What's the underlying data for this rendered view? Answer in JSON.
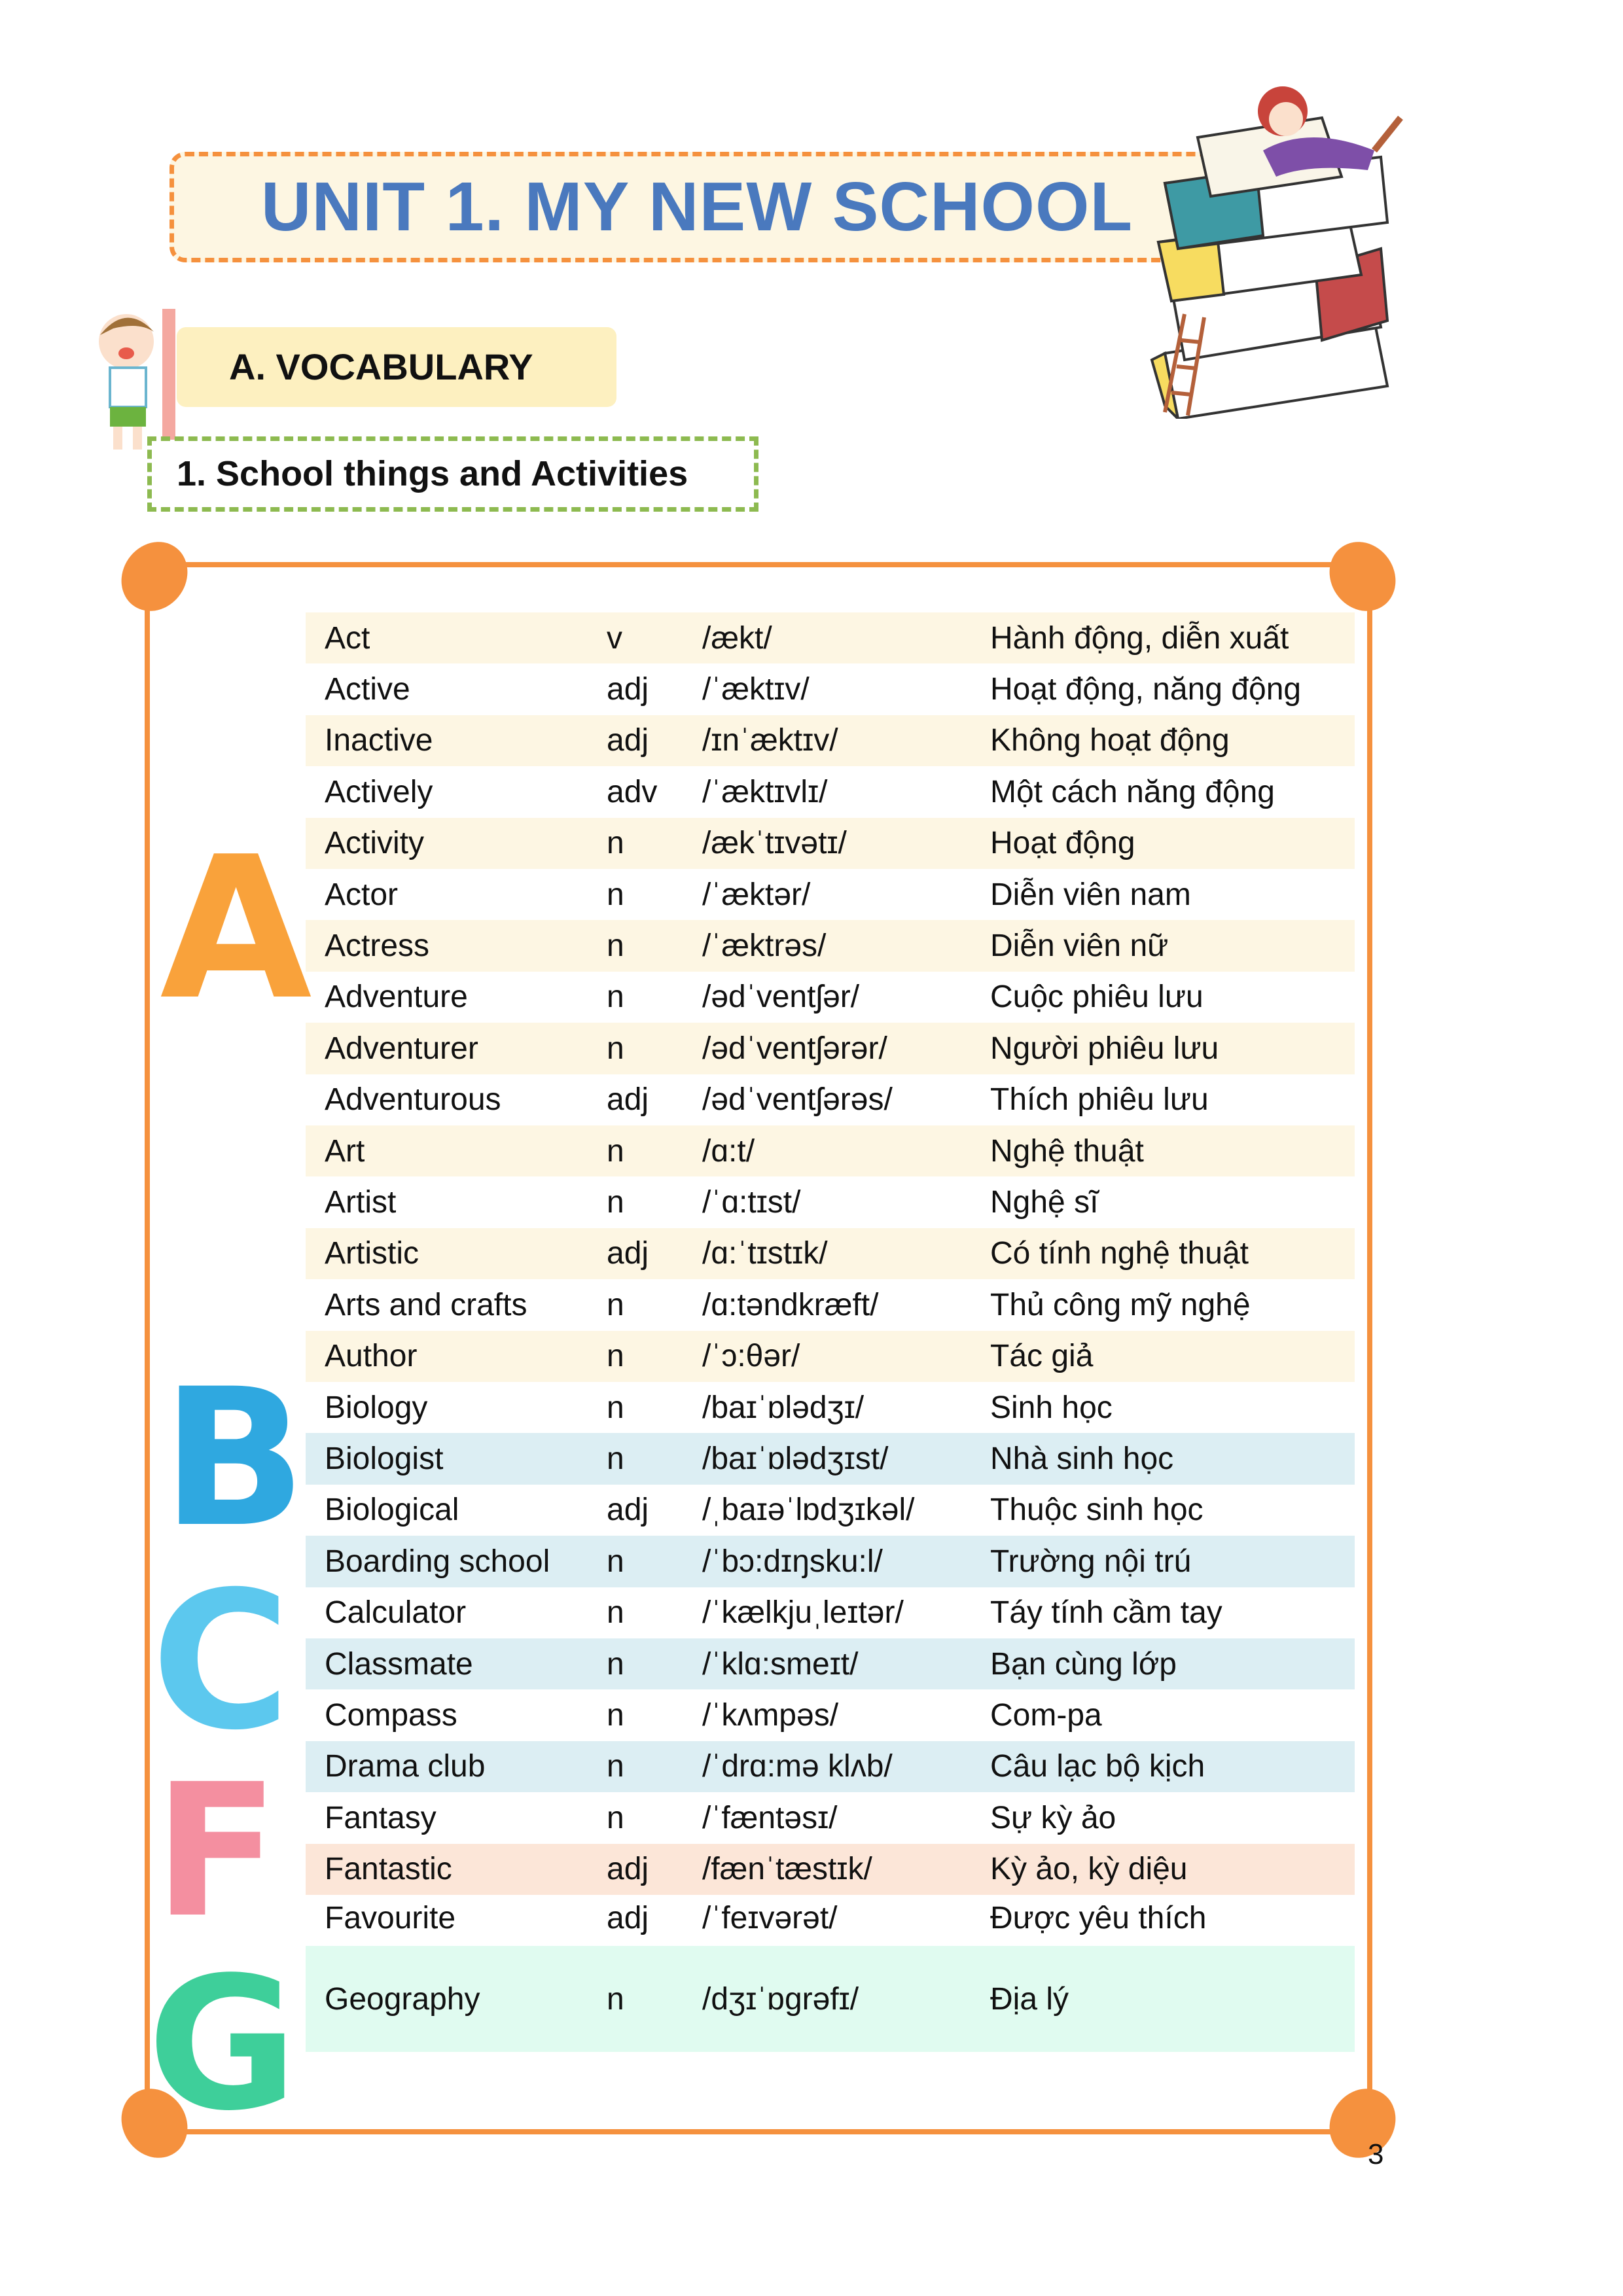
{
  "header": {
    "title": "UNIT 1. MY NEW SCHOOL",
    "section_label": "A. VOCABULARY",
    "subsection_label": "1. School things and Activities"
  },
  "colors": {
    "title": "#4A79BE",
    "frame": "#F5913E",
    "row_cream": "#FDF6E3",
    "row_blue": "#DCEEF3",
    "row_peach": "#FCE6D8",
    "row_mint": "#E0FBF0"
  },
  "decorations": {
    "letters": [
      "A",
      "B",
      "C",
      "F",
      "G"
    ],
    "illustrations": [
      "girl-reading-on-books",
      "boy-with-pencil"
    ]
  },
  "vocabulary": [
    {
      "word": "Act",
      "pos": "v",
      "ipa": "/ækt/",
      "meaning": "Hành động, diễn xuất",
      "bg": "cream"
    },
    {
      "word": "Active",
      "pos": "adj",
      "ipa": "/ˈæktɪv/",
      "meaning": "Hoạt động, năng động",
      "bg": "white"
    },
    {
      "word": "Inactive",
      "pos": "adj",
      "ipa": "/ɪnˈæktɪv/",
      "meaning": "Không hoạt động",
      "bg": "cream"
    },
    {
      "word": "Actively",
      "pos": "adv",
      "ipa": "/ˈæktɪvlɪ/",
      "meaning": "Một cách năng động",
      "bg": "white"
    },
    {
      "word": "Activity",
      "pos": "n",
      "ipa": "/ækˈtɪvətɪ/",
      "meaning": "Hoạt động",
      "bg": "cream"
    },
    {
      "word": "Actor",
      "pos": "n",
      "ipa": "/ˈæktər/",
      "meaning": "Diễn viên nam",
      "bg": "white"
    },
    {
      "word": "Actress",
      "pos": "n",
      "ipa": "/ˈæktrəs/",
      "meaning": "Diễn viên nữ",
      "bg": "cream"
    },
    {
      "word": "Adventure",
      "pos": "n",
      "ipa": "/ədˈventʃər/",
      "meaning": "Cuộc phiêu lưu",
      "bg": "white"
    },
    {
      "word": "Adventurer",
      "pos": "n",
      "ipa": "/ədˈventʃərər/",
      "meaning": "Người phiêu lưu",
      "bg": "cream"
    },
    {
      "word": "Adventurous",
      "pos": "adj",
      "ipa": "/ədˈventʃərəs/",
      "meaning": "Thích phiêu lưu",
      "bg": "white"
    },
    {
      "word": "Art",
      "pos": "n",
      "ipa": "/ɑ:t/",
      "meaning": "Nghệ thuật",
      "bg": "cream"
    },
    {
      "word": "Artist",
      "pos": "n",
      "ipa": "/ˈɑ:tɪst/",
      "meaning": "Nghệ sĩ",
      "bg": "white"
    },
    {
      "word": "Artistic",
      "pos": "adj",
      "ipa": "/ɑ:ˈtɪstɪk/",
      "meaning": "Có tính nghệ thuật",
      "bg": "cream"
    },
    {
      "word": "Arts and crafts",
      "pos": "n",
      "ipa": "/ɑ:təndkræft/",
      "meaning": "Thủ công mỹ nghệ",
      "bg": "white"
    },
    {
      "word": "Author",
      "pos": "n",
      "ipa": "/ˈɔ:θər/",
      "meaning": "Tác giả",
      "bg": "cream"
    },
    {
      "word": "Biology",
      "pos": "n",
      "ipa": "/baɪˈɒlədʒɪ/",
      "meaning": "Sinh học",
      "bg": "white"
    },
    {
      "word": "Biologist",
      "pos": "n",
      "ipa": "/baɪˈɒlədʒɪst/",
      "meaning": "Nhà sinh học",
      "bg": "blue"
    },
    {
      "word": "Biological",
      "pos": "adj",
      "ipa": "/ˌbaɪəˈlɒdʒɪkəl/",
      "meaning": "Thuộc sinh học",
      "bg": "white"
    },
    {
      "word": "Boarding school",
      "pos": "n",
      "ipa": "/ˈbɔ:dɪŋsku:l/",
      "meaning": "Trường nội trú",
      "bg": "blue"
    },
    {
      "word": "Calculator",
      "pos": "n",
      "ipa": "/ˈkælkjuˌleɪtər/",
      "meaning": "Táy tính cầm tay",
      "bg": "white"
    },
    {
      "word": "Classmate",
      "pos": "n",
      "ipa": "/ˈklɑ:smeɪt/",
      "meaning": "Bạn cùng lớp",
      "bg": "blue"
    },
    {
      "word": "Compass",
      "pos": "n",
      "ipa": "/ˈkʌmpəs/",
      "meaning": "Com-pa",
      "bg": "white"
    },
    {
      "word": "Drama club",
      "pos": "n",
      "ipa": "/ˈdrɑ:mə klʌb/",
      "meaning": "Câu lạc bộ kịch",
      "bg": "blue"
    },
    {
      "word": "Fantasy",
      "pos": "n",
      "ipa": "/ˈfæntəsɪ/",
      "meaning": "Sự kỳ ảo",
      "bg": "white"
    },
    {
      "word": "Fantastic",
      "pos": "adj",
      "ipa": "/fænˈtæstɪk/",
      "meaning": "Kỳ ảo, kỳ diệu",
      "bg": "peach"
    },
    {
      "word": "Favourite",
      "pos": "adj",
      "ipa": "/ˈfeɪvərət/",
      "meaning": "Được yêu thích",
      "bg": "white"
    },
    {
      "word": "Geography",
      "pos": "n",
      "ipa": "/dʒɪˈɒgrəfɪ/",
      "meaning": "Địa lý",
      "bg": "mint"
    }
  ],
  "page_number": "3"
}
